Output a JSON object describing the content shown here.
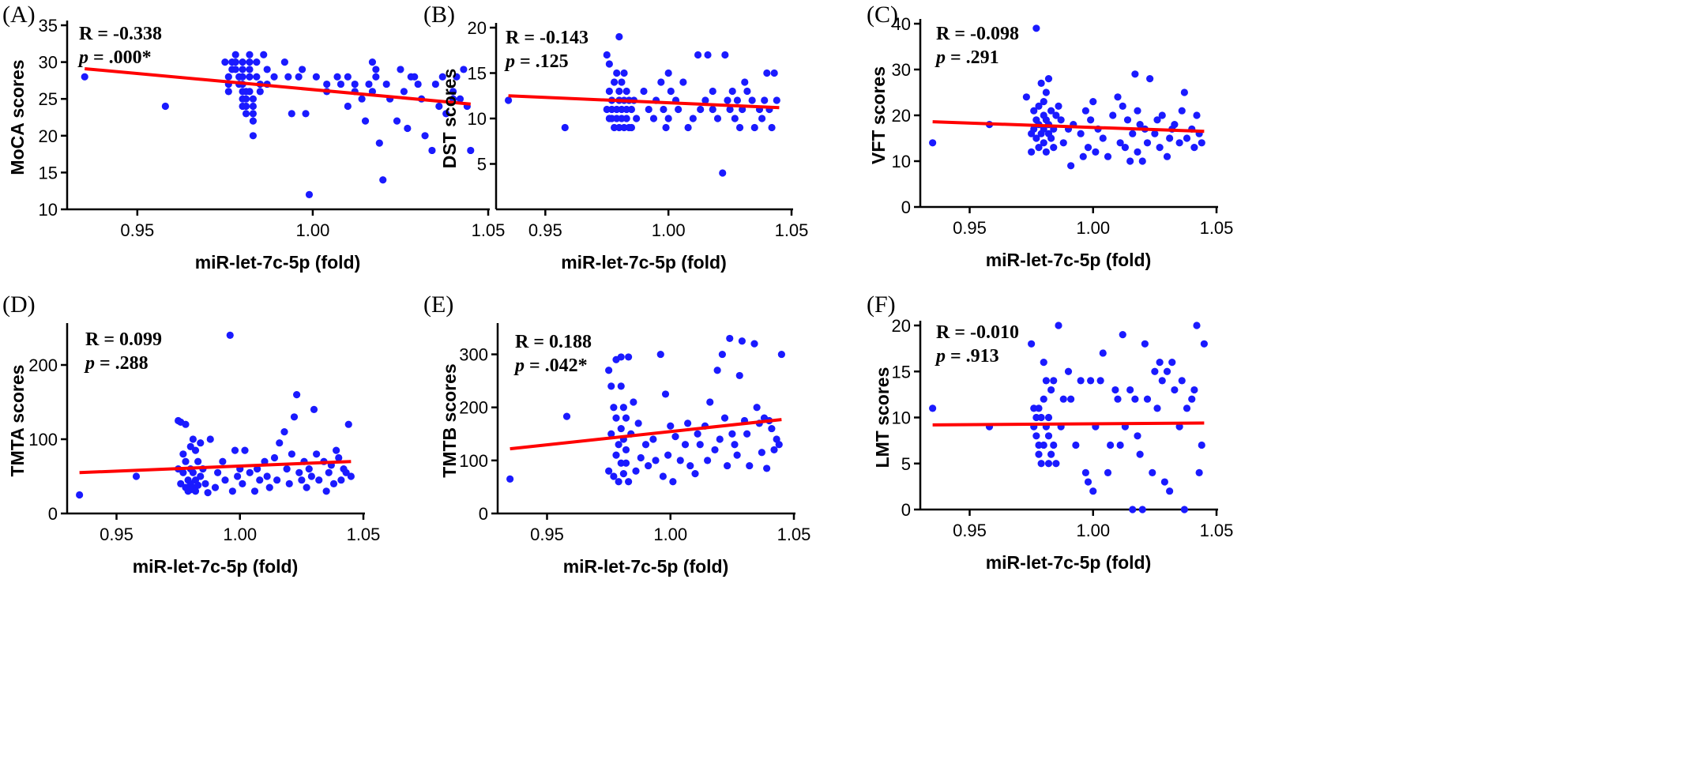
{
  "chart_data": [
    {
      "panel": "(A)",
      "type": "scatter",
      "xlabel": "miR-let-7c-5p (fold)",
      "ylabel": "MoCA scores",
      "xlim": [
        0.93,
        1.05
      ],
      "ylim": [
        10,
        35
      ],
      "xticks": [
        "0.95",
        "1.00",
        "1.05"
      ],
      "yticks": [
        "10",
        "15",
        "20",
        "25",
        "30",
        "35"
      ],
      "stats": {
        "r": "R = -0.338",
        "p_label": "p",
        "p_value": " = .000*"
      },
      "trend": [
        [
          0.935,
          29.1
        ],
        [
          1.045,
          24.3
        ]
      ],
      "x": [
        0.935,
        0.958,
        0.975,
        0.976,
        0.976,
        0.976,
        0.977,
        0.977,
        0.978,
        0.978,
        0.978,
        0.979,
        0.979,
        0.98,
        0.98,
        0.98,
        0.98,
        0.98,
        0.98,
        0.98,
        0.981,
        0.981,
        0.981,
        0.981,
        0.982,
        0.982,
        0.982,
        0.982,
        0.982,
        0.983,
        0.983,
        0.983,
        0.983,
        0.983,
        0.984,
        0.984,
        0.985,
        0.985,
        0.986,
        0.987,
        0.987,
        0.989,
        0.992,
        0.993,
        0.994,
        0.996,
        0.997,
        0.998,
        0.999,
        1.001,
        1.004,
        1.004,
        1.007,
        1.008,
        1.01,
        1.01,
        1.012,
        1.012,
        1.014,
        1.015,
        1.016,
        1.017,
        1.017,
        1.018,
        1.018,
        1.019,
        1.02,
        1.021,
        1.022,
        1.024,
        1.025,
        1.026,
        1.027,
        1.028,
        1.029,
        1.03,
        1.031,
        1.032,
        1.034,
        1.035,
        1.036,
        1.037,
        1.038,
        1.04,
        1.04,
        1.041,
        1.042,
        1.043,
        1.044,
        1.045
      ],
      "y": [
        28,
        24,
        30,
        28,
        27,
        26,
        29,
        30,
        31,
        30,
        29,
        28,
        27,
        26,
        25,
        24,
        30,
        29,
        28,
        27,
        26,
        25,
        24,
        23,
        31,
        30,
        29,
        28,
        26,
        25,
        24,
        23,
        22,
        20,
        30,
        28,
        27,
        26,
        31,
        29,
        27,
        28,
        30,
        28,
        23,
        28,
        29,
        23,
        12,
        28,
        27,
        26,
        28,
        27,
        24,
        28,
        27,
        26,
        25,
        22,
        27,
        26,
        30,
        29,
        28,
        19,
        14,
        27,
        25,
        22,
        29,
        26,
        21,
        28,
        28,
        27,
        25,
        20,
        18,
        27,
        24,
        28,
        23,
        26,
        25,
        28,
        25,
        29,
        24,
        18
      ]
    },
    {
      "panel": "(B)",
      "type": "scatter",
      "xlabel": "miR-let-7c-5p (fold)",
      "ylabel": "DST scores",
      "xlim": [
        0.93,
        1.05
      ],
      "ylim": [
        0,
        20
      ],
      "xticks": [
        "0.95",
        "1.00",
        "1.05"
      ],
      "yticks": [
        "5",
        "10",
        "15",
        "20"
      ],
      "stats": {
        "r": "R = -0.143",
        "p_label": "p",
        "p_value": " = .125"
      },
      "trend": [
        [
          0.935,
          12.5
        ],
        [
          1.045,
          11.2
        ]
      ],
      "x": [
        0.935,
        0.958,
        0.975,
        0.975,
        0.976,
        0.976,
        0.976,
        0.977,
        0.977,
        0.977,
        0.978,
        0.978,
        0.979,
        0.979,
        0.979,
        0.98,
        0.98,
        0.98,
        0.98,
        0.981,
        0.981,
        0.981,
        0.982,
        0.982,
        0.982,
        0.983,
        0.983,
        0.983,
        0.984,
        0.984,
        0.985,
        0.985,
        0.986,
        0.987,
        0.99,
        0.992,
        0.994,
        0.995,
        0.997,
        0.998,
        0.999,
        1.0,
        1.0,
        1.001,
        1.003,
        1.004,
        1.006,
        1.008,
        1.01,
        1.012,
        1.013,
        1.015,
        1.016,
        1.018,
        1.018,
        1.02,
        1.022,
        1.023,
        1.024,
        1.025,
        1.026,
        1.027,
        1.028,
        1.029,
        1.03,
        1.031,
        1.032,
        1.034,
        1.035,
        1.037,
        1.038,
        1.039,
        1.04,
        1.041,
        1.042,
        1.043,
        1.044
      ],
      "y": [
        12,
        9,
        17,
        11,
        16,
        13,
        10,
        12,
        11,
        10,
        14,
        9,
        15,
        11,
        10,
        19,
        13,
        12,
        9,
        14,
        11,
        10,
        15,
        12,
        9,
        13,
        11,
        10,
        12,
        9,
        11,
        9,
        12,
        10,
        13,
        11,
        10,
        12,
        14,
        11,
        9,
        15,
        10,
        13,
        12,
        11,
        14,
        9,
        10,
        17,
        11,
        12,
        17,
        13,
        11,
        10,
        4,
        17,
        12,
        11,
        13,
        10,
        12,
        9,
        11,
        14,
        13,
        12,
        9,
        11,
        10,
        12,
        15,
        11,
        9,
        15,
        12
      ]
    },
    {
      "panel": "(C)",
      "type": "scatter",
      "xlabel": "miR-let-7c-5p (fold)",
      "ylabel": "VFT scores",
      "xlim": [
        0.93,
        1.05
      ],
      "ylim": [
        0,
        40
      ],
      "xticks": [
        "0.95",
        "1.00",
        "1.05"
      ],
      "yticks": [
        "0",
        "10",
        "20",
        "30",
        "40"
      ],
      "stats": {
        "r": "R = -0.098",
        "p_label": "p",
        "p_value": " = .291"
      },
      "trend": [
        [
          0.935,
          18.6
        ],
        [
          1.045,
          16.5
        ]
      ],
      "x": [
        0.935,
        0.958,
        0.973,
        0.975,
        0.975,
        0.976,
        0.976,
        0.977,
        0.977,
        0.977,
        0.978,
        0.978,
        0.978,
        0.979,
        0.979,
        0.98,
        0.98,
        0.98,
        0.98,
        0.981,
        0.981,
        0.981,
        0.982,
        0.982,
        0.982,
        0.983,
        0.983,
        0.984,
        0.984,
        0.985,
        0.986,
        0.987,
        0.988,
        0.99,
        0.991,
        0.992,
        0.995,
        0.996,
        0.997,
        0.998,
        0.999,
        1.0,
        1.001,
        1.002,
        1.004,
        1.006,
        1.008,
        1.01,
        1.011,
        1.012,
        1.013,
        1.014,
        1.015,
        1.016,
        1.017,
        1.018,
        1.018,
        1.019,
        1.02,
        1.021,
        1.022,
        1.023,
        1.025,
        1.026,
        1.027,
        1.028,
        1.03,
        1.031,
        1.032,
        1.033,
        1.035,
        1.036,
        1.037,
        1.038,
        1.04,
        1.041,
        1.042,
        1.043,
        1.044
      ],
      "y": [
        14,
        18,
        24,
        16,
        12,
        21,
        17,
        39,
        15,
        19,
        13,
        18,
        22,
        27,
        16,
        14,
        20,
        23,
        17,
        12,
        19,
        25,
        16,
        28,
        18,
        21,
        15,
        17,
        13,
        20,
        22,
        19,
        14,
        17,
        9,
        18,
        16,
        11,
        21,
        13,
        19,
        23,
        12,
        17,
        15,
        11,
        20,
        24,
        14,
        22,
        13,
        19,
        10,
        16,
        29,
        12,
        21,
        18,
        10,
        17,
        14,
        28,
        16,
        19,
        13,
        20,
        11,
        15,
        17,
        18,
        14,
        21,
        25,
        15,
        17,
        13,
        20,
        16,
        14
      ]
    },
    {
      "panel": "(D)",
      "type": "scatter",
      "xlabel": "miR-let-7c-5p (fold)",
      "ylabel": "TMTA scores",
      "xlim": [
        0.93,
        1.05
      ],
      "ylim": [
        0,
        250
      ],
      "xticks": [
        "0.95",
        "1.00",
        "1.05"
      ],
      "yticks": [
        "0",
        "100",
        "200"
      ],
      "stats": {
        "r": "R = 0.099",
        "p_label": "p",
        "p_value": " = .288"
      },
      "trend": [
        [
          0.935,
          55
        ],
        [
          1.045,
          70
        ]
      ],
      "x": [
        0.935,
        0.958,
        0.975,
        0.975,
        0.976,
        0.976,
        0.977,
        0.977,
        0.978,
        0.978,
        0.978,
        0.979,
        0.979,
        0.98,
        0.98,
        0.98,
        0.98,
        0.981,
        0.981,
        0.981,
        0.982,
        0.982,
        0.982,
        0.983,
        0.983,
        0.984,
        0.984,
        0.985,
        0.986,
        0.987,
        0.988,
        0.99,
        0.991,
        0.993,
        0.994,
        0.996,
        0.997,
        0.998,
        0.999,
        1.0,
        1.001,
        1.002,
        1.004,
        1.006,
        1.007,
        1.008,
        1.01,
        1.011,
        1.012,
        1.014,
        1.015,
        1.016,
        1.018,
        1.019,
        1.02,
        1.021,
        1.022,
        1.023,
        1.024,
        1.025,
        1.026,
        1.027,
        1.028,
        1.029,
        1.03,
        1.031,
        1.032,
        1.034,
        1.035,
        1.036,
        1.037,
        1.038,
        1.039,
        1.04,
        1.041,
        1.042,
        1.043,
        1.044,
        1.045
      ],
      "y": [
        25,
        50,
        125,
        60,
        123,
        40,
        80,
        55,
        35,
        120,
        70,
        45,
        30,
        90,
        60,
        40,
        32,
        100,
        55,
        35,
        85,
        45,
        30,
        70,
        38,
        95,
        50,
        60,
        40,
        28,
        100,
        35,
        55,
        70,
        45,
        240,
        30,
        85,
        50,
        60,
        40,
        85,
        55,
        30,
        60,
        45,
        70,
        50,
        35,
        75,
        45,
        95,
        110,
        60,
        40,
        80,
        130,
        160,
        55,
        45,
        70,
        35,
        60,
        50,
        140,
        80,
        45,
        70,
        30,
        55,
        65,
        40,
        85,
        75,
        45,
        60,
        55,
        120,
        50
      ]
    },
    {
      "panel": "(E)",
      "type": "scatter",
      "xlabel": "miR-let-7c-5p (fold)",
      "ylabel": "TMTB scores",
      "xlim": [
        0.93,
        1.05
      ],
      "ylim": [
        0,
        350
      ],
      "xticks": [
        "0.95",
        "1.00",
        "1.05"
      ],
      "yticks": [
        "0",
        "100",
        "200",
        "300"
      ],
      "stats": {
        "r": "R = 0.188",
        "p_label": "p",
        "p_value": " = .042*"
      },
      "trend": [
        [
          0.935,
          122
        ],
        [
          1.045,
          177
        ]
      ],
      "x": [
        0.935,
        0.958,
        0.975,
        0.975,
        0.976,
        0.976,
        0.977,
        0.977,
        0.978,
        0.978,
        0.978,
        0.979,
        0.979,
        0.98,
        0.98,
        0.98,
        0.98,
        0.981,
        0.981,
        0.981,
        0.982,
        0.982,
        0.982,
        0.983,
        0.983,
        0.984,
        0.985,
        0.986,
        0.987,
        0.988,
        0.99,
        0.991,
        0.993,
        0.994,
        0.996,
        0.997,
        0.998,
        0.999,
        1.0,
        1.001,
        1.002,
        1.004,
        1.006,
        1.007,
        1.008,
        1.01,
        1.011,
        1.012,
        1.014,
        1.015,
        1.016,
        1.018,
        1.019,
        1.02,
        1.021,
        1.022,
        1.023,
        1.024,
        1.025,
        1.026,
        1.027,
        1.028,
        1.029,
        1.03,
        1.031,
        1.032,
        1.034,
        1.035,
        1.036,
        1.037,
        1.038,
        1.039,
        1.04,
        1.041,
        1.042,
        1.043,
        1.044,
        1.045
      ],
      "y": [
        65,
        183,
        270,
        80,
        240,
        150,
        200,
        70,
        290,
        110,
        180,
        60,
        130,
        295,
        240,
        95,
        160,
        200,
        75,
        140,
        180,
        95,
        120,
        295,
        60,
        150,
        210,
        80,
        170,
        105,
        130,
        90,
        140,
        100,
        300,
        70,
        225,
        110,
        165,
        60,
        145,
        100,
        130,
        170,
        90,
        75,
        150,
        130,
        165,
        100,
        210,
        120,
        270,
        140,
        300,
        180,
        90,
        330,
        150,
        130,
        110,
        260,
        325,
        175,
        150,
        90,
        320,
        200,
        170,
        115,
        180,
        85,
        175,
        160,
        120,
        140,
        130,
        300
      ]
    },
    {
      "panel": "(F)",
      "type": "scatter",
      "xlabel": "miR-let-7c-5p (fold)",
      "ylabel": "LMT scores",
      "xlim": [
        0.93,
        1.05
      ],
      "ylim": [
        0,
        20
      ],
      "xticks": [
        "0.95",
        "1.00",
        "1.05"
      ],
      "yticks": [
        "0",
        "5",
        "10",
        "15",
        "20"
      ],
      "stats": {
        "r": "R = -0.010",
        "p_label": "p",
        "p_value": " = .913"
      },
      "trend": [
        [
          0.935,
          9.2
        ],
        [
          1.045,
          9.4
        ]
      ],
      "x": [
        0.935,
        0.958,
        0.975,
        0.976,
        0.976,
        0.977,
        0.977,
        0.978,
        0.978,
        0.978,
        0.979,
        0.979,
        0.98,
        0.98,
        0.98,
        0.981,
        0.981,
        0.982,
        0.982,
        0.982,
        0.983,
        0.983,
        0.984,
        0.984,
        0.985,
        0.986,
        0.987,
        0.988,
        0.99,
        0.991,
        0.993,
        0.995,
        0.997,
        0.998,
        0.999,
        1.0,
        1.001,
        1.003,
        1.004,
        1.006,
        1.007,
        1.009,
        1.01,
        1.011,
        1.012,
        1.013,
        1.015,
        1.016,
        1.017,
        1.018,
        1.019,
        1.02,
        1.021,
        1.022,
        1.024,
        1.025,
        1.026,
        1.027,
        1.028,
        1.029,
        1.03,
        1.031,
        1.032,
        1.033,
        1.035,
        1.036,
        1.037,
        1.038,
        1.04,
        1.041,
        1.042,
        1.043,
        1.044,
        1.045
      ],
      "y": [
        11,
        9,
        18,
        9,
        11,
        10,
        8,
        7,
        11,
        6,
        10,
        5,
        16,
        12,
        7,
        14,
        9,
        5,
        10,
        8,
        13,
        6,
        14,
        7,
        5,
        20,
        9,
        12,
        15,
        12,
        7,
        14,
        4,
        3,
        14,
        2,
        9,
        14,
        17,
        4,
        7,
        13,
        12,
        7,
        19,
        9,
        13,
        0,
        12,
        8,
        6,
        0,
        18,
        12,
        4,
        15,
        11,
        16,
        14,
        3,
        15,
        2,
        16,
        13,
        9,
        14,
        0,
        11,
        12,
        13,
        20,
        4,
        7,
        18
      ]
    }
  ]
}
